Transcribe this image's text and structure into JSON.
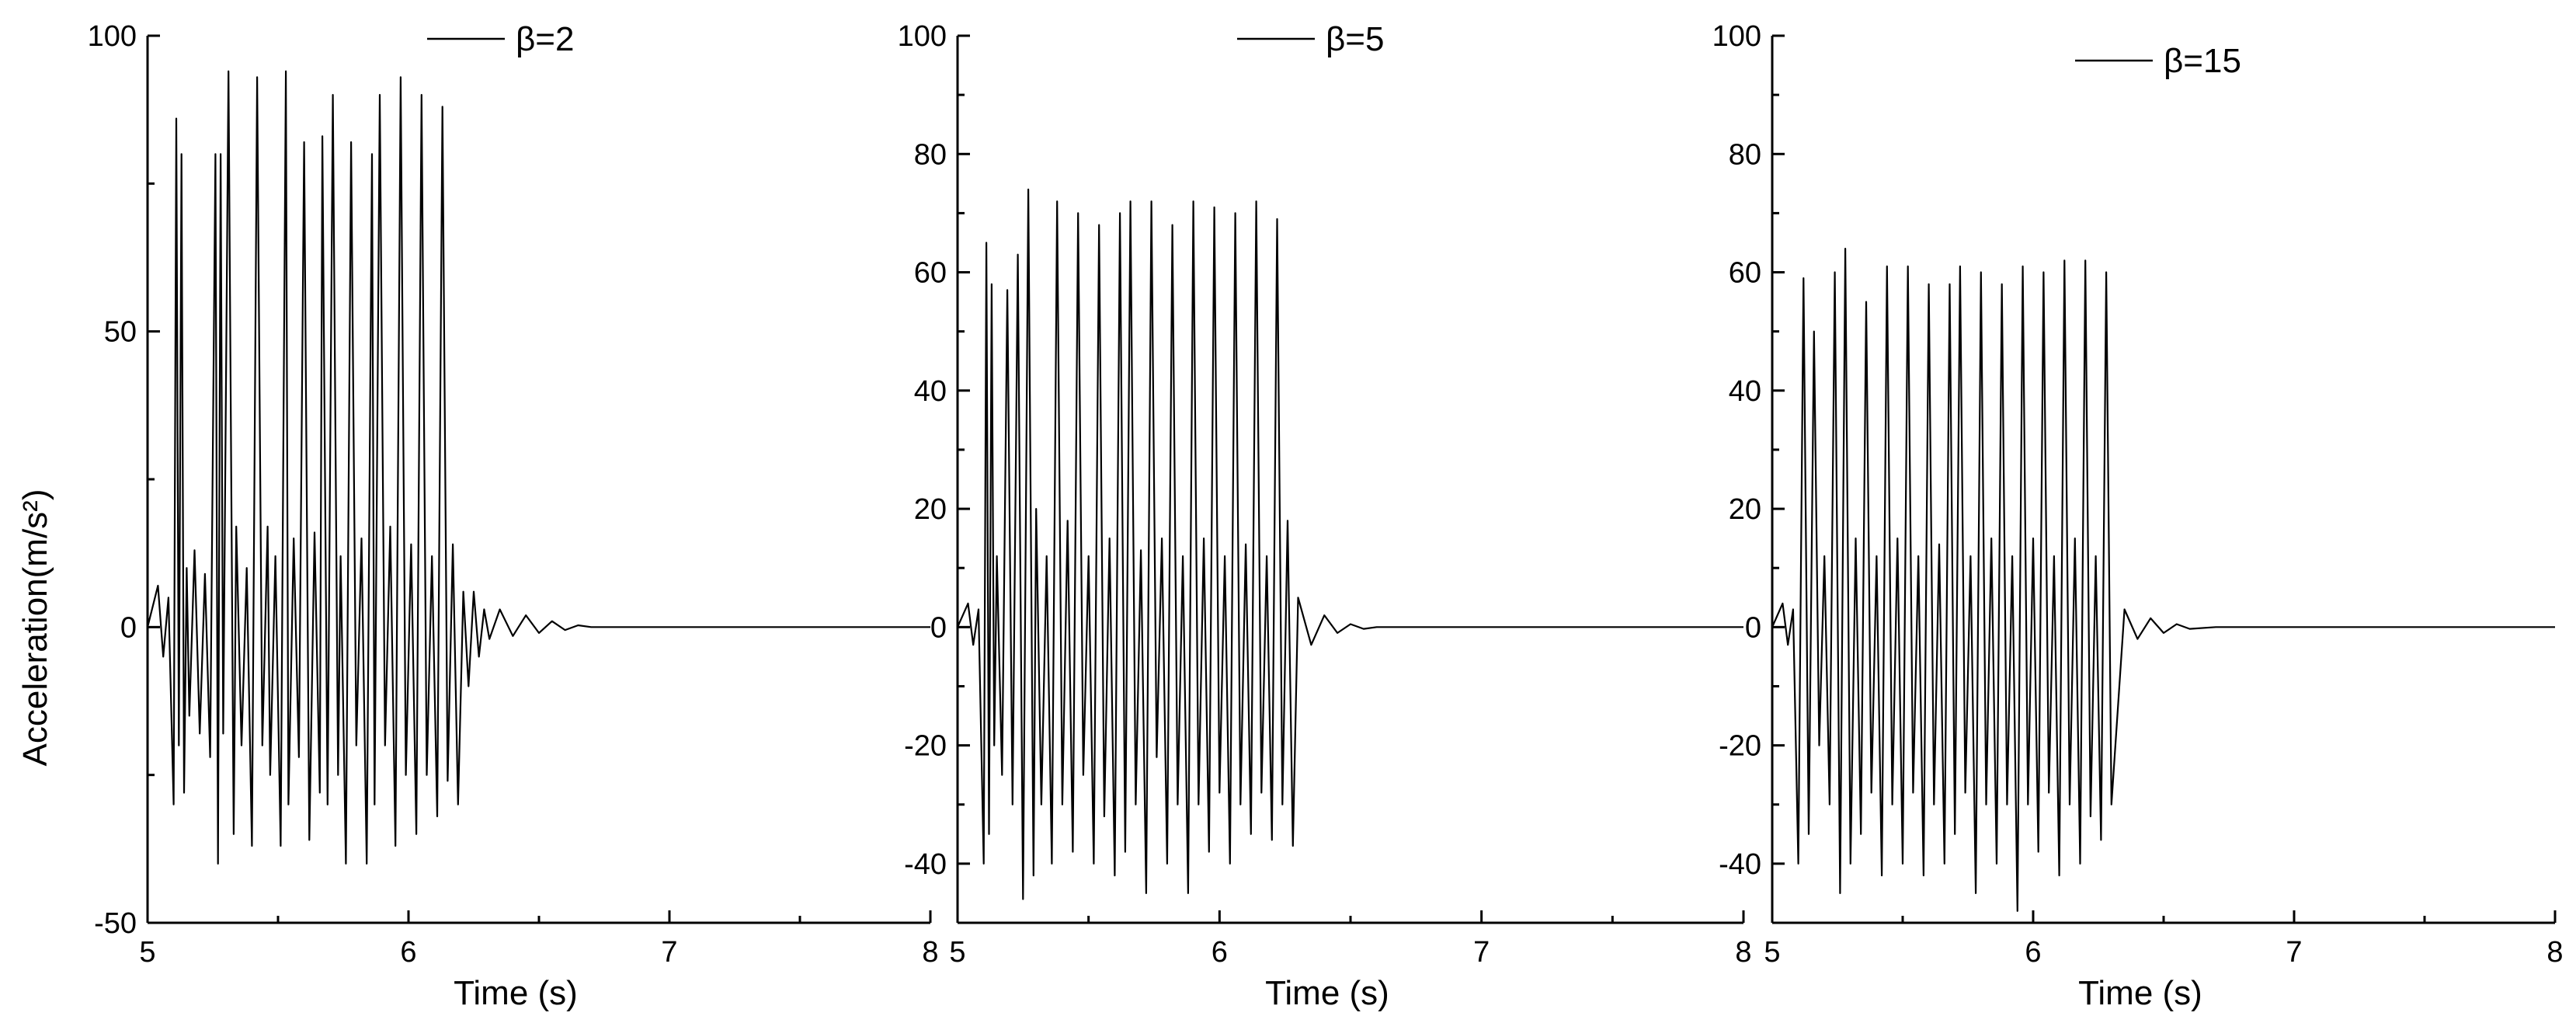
{
  "figure": {
    "ylabel": "Acceleration(m/s²)",
    "line_color": "#000000",
    "background": "#ffffff"
  },
  "chart_data": [
    {
      "type": "line",
      "xlabel": "Time (s)",
      "ylabel": "Acceleration(m/s²)",
      "xlim": [
        5,
        8
      ],
      "ylim": [
        -50,
        100
      ],
      "xticks": [
        "5",
        "6",
        "7",
        "8"
      ],
      "yticks": [
        "-50",
        "0",
        "50",
        "100"
      ],
      "legend": "top-center",
      "grid": false,
      "series": [
        {
          "name": "β=2",
          "x": [
            5.0,
            5.04,
            5.06,
            5.08,
            5.1,
            5.11,
            5.12,
            5.13,
            5.14,
            5.15,
            5.16,
            5.18,
            5.2,
            5.22,
            5.24,
            5.26,
            5.27,
            5.28,
            5.29,
            5.31,
            5.33,
            5.34,
            5.36,
            5.38,
            5.4,
            5.42,
            5.44,
            5.46,
            5.47,
            5.49,
            5.51,
            5.53,
            5.54,
            5.56,
            5.58,
            5.6,
            5.62,
            5.64,
            5.66,
            5.67,
            5.69,
            5.71,
            5.73,
            5.74,
            5.76,
            5.78,
            5.8,
            5.82,
            5.84,
            5.86,
            5.87,
            5.89,
            5.91,
            5.93,
            5.95,
            5.97,
            5.99,
            6.01,
            6.03,
            6.05,
            6.07,
            6.09,
            6.11,
            6.13,
            6.15,
            6.17,
            6.19,
            6.21,
            6.23,
            6.25,
            6.27,
            6.29,
            6.31,
            6.35,
            6.4,
            6.45,
            6.5,
            6.55,
            6.6,
            6.65,
            6.7,
            6.8,
            7.0,
            8.0
          ],
          "y": [
            0,
            7,
            -5,
            5,
            -30,
            86,
            -20,
            80,
            -28,
            10,
            -15,
            13,
            -18,
            9,
            -22,
            80,
            -40,
            80,
            -18,
            94,
            -35,
            17,
            -20,
            10,
            -37,
            93,
            -20,
            17,
            -25,
            12,
            -37,
            94,
            -30,
            15,
            -22,
            82,
            -36,
            16,
            -28,
            83,
            -30,
            90,
            -25,
            12,
            -40,
            82,
            -20,
            15,
            -40,
            80,
            -30,
            90,
            -20,
            17,
            -37,
            93,
            -25,
            14,
            -35,
            90,
            -25,
            12,
            -32,
            88,
            -26,
            14,
            -30,
            6,
            -10,
            6,
            -5,
            3,
            -2,
            3,
            -1.5,
            2,
            -1,
            1,
            -0.5,
            0.3,
            0,
            0,
            0,
            0
          ]
        }
      ]
    },
    {
      "type": "line",
      "xlabel": "Time (s)",
      "ylabel": "",
      "xlim": [
        5,
        8
      ],
      "ylim": [
        -50,
        100
      ],
      "xticks": [
        "5",
        "6",
        "7",
        "8"
      ],
      "yticks": [
        "-40",
        "-20",
        "0",
        "20",
        "40",
        "60",
        "80",
        "100"
      ],
      "legend": "top-center",
      "grid": false,
      "series": [
        {
          "name": "β=5",
          "x": [
            5.0,
            5.04,
            5.06,
            5.08,
            5.1,
            5.11,
            5.12,
            5.13,
            5.14,
            5.15,
            5.17,
            5.19,
            5.21,
            5.23,
            5.25,
            5.27,
            5.29,
            5.3,
            5.32,
            5.34,
            5.36,
            5.38,
            5.4,
            5.42,
            5.44,
            5.46,
            5.48,
            5.5,
            5.52,
            5.54,
            5.56,
            5.58,
            5.6,
            5.62,
            5.64,
            5.66,
            5.68,
            5.7,
            5.72,
            5.74,
            5.76,
            5.78,
            5.8,
            5.82,
            5.84,
            5.86,
            5.88,
            5.9,
            5.92,
            5.94,
            5.96,
            5.98,
            6.0,
            6.02,
            6.04,
            6.06,
            6.08,
            6.1,
            6.12,
            6.14,
            6.16,
            6.18,
            6.2,
            6.22,
            6.24,
            6.26,
            6.28,
            6.3,
            6.35,
            6.4,
            6.45,
            6.5,
            6.55,
            6.6,
            6.7,
            7.0,
            8.0
          ],
          "y": [
            0,
            4,
            -3,
            3,
            -40,
            65,
            -35,
            58,
            -20,
            12,
            -25,
            57,
            -30,
            63,
            -46,
            74,
            -42,
            20,
            -30,
            12,
            -40,
            72,
            -30,
            18,
            -38,
            70,
            -25,
            12,
            -40,
            68,
            -32,
            15,
            -42,
            70,
            -38,
            72,
            -30,
            13,
            -45,
            72,
            -22,
            15,
            -40,
            68,
            -30,
            12,
            -45,
            72,
            -30,
            15,
            -38,
            71,
            -28,
            12,
            -40,
            70,
            -30,
            14,
            -35,
            72,
            -28,
            12,
            -36,
            69,
            -30,
            18,
            -37,
            5,
            -3,
            2,
            -1,
            0.5,
            -0.3,
            0,
            0,
            0,
            0
          ]
        }
      ]
    },
    {
      "type": "line",
      "xlabel": "Time (s)",
      "ylabel": "",
      "xlim": [
        5,
        8
      ],
      "ylim": [
        -50,
        100
      ],
      "xticks": [
        "5",
        "6",
        "7",
        "8"
      ],
      "yticks": [
        "-40",
        "-20",
        "0",
        "20",
        "40",
        "60",
        "80",
        "100"
      ],
      "legend": "top-center",
      "grid": false,
      "series": [
        {
          "name": "β=15",
          "x": [
            5.0,
            5.04,
            5.06,
            5.08,
            5.1,
            5.12,
            5.14,
            5.16,
            5.18,
            5.2,
            5.22,
            5.24,
            5.26,
            5.28,
            5.3,
            5.32,
            5.34,
            5.36,
            5.38,
            5.4,
            5.42,
            5.44,
            5.46,
            5.48,
            5.5,
            5.52,
            5.54,
            5.56,
            5.58,
            5.6,
            5.62,
            5.64,
            5.66,
            5.68,
            5.7,
            5.72,
            5.74,
            5.76,
            5.78,
            5.8,
            5.82,
            5.84,
            5.86,
            5.88,
            5.9,
            5.92,
            5.94,
            5.96,
            5.98,
            6.0,
            6.02,
            6.04,
            6.06,
            6.08,
            6.1,
            6.12,
            6.14,
            6.16,
            6.18,
            6.2,
            6.22,
            6.24,
            6.26,
            6.28,
            6.3,
            6.35,
            6.4,
            6.45,
            6.5,
            6.55,
            6.6,
            6.7,
            7.0,
            8.0
          ],
          "y": [
            0,
            4,
            -3,
            3,
            -40,
            59,
            -35,
            50,
            -20,
            12,
            -30,
            60,
            -45,
            64,
            -40,
            15,
            -35,
            55,
            -28,
            12,
            -42,
            61,
            -30,
            15,
            -40,
            61,
            -28,
            12,
            -42,
            58,
            -30,
            14,
            -40,
            58,
            -35,
            61,
            -28,
            12,
            -45,
            60,
            -30,
            15,
            -40,
            58,
            -30,
            12,
            -48,
            61,
            -30,
            15,
            -38,
            60,
            -28,
            12,
            -42,
            62,
            -30,
            15,
            -40,
            62,
            -32,
            12,
            -36,
            60,
            -30,
            3,
            -2,
            1.5,
            -1,
            0.5,
            -0.3,
            0,
            0,
            0
          ]
        }
      ]
    }
  ]
}
